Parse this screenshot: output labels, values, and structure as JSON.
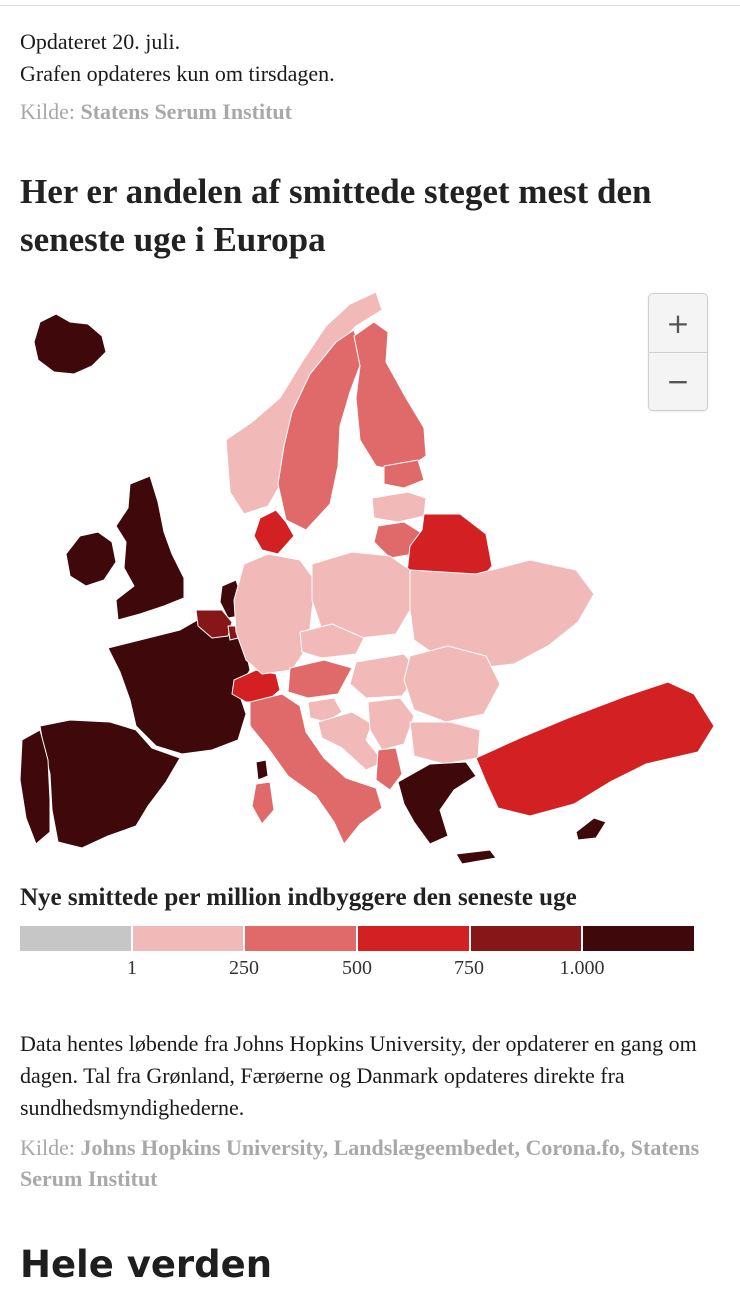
{
  "update_line": "Opdateret 20. juli.",
  "schedule_line": "Grafen opdateres kun om tirsdagen.",
  "source1": {
    "label": "Kilde:",
    "value": "Statens Serum Institut"
  },
  "map_title": "Her er andelen af smittede steget mest den seneste uge i Europa",
  "zoom": {
    "in": "+",
    "out": "−"
  },
  "legend": {
    "title": "Nye smittede per million indbyggere den seneste uge",
    "colors": [
      "#c6c6c6",
      "#f2b9b9",
      "#e06a6a",
      "#d32023",
      "#861618",
      "#3f080a"
    ],
    "ticks": [
      "1",
      "250",
      "500",
      "750",
      "1.000"
    ]
  },
  "regions": [
    {
      "name": "Iceland",
      "class": 5
    },
    {
      "name": "Ireland",
      "class": 5
    },
    {
      "name": "United Kingdom",
      "class": 5
    },
    {
      "name": "France",
      "class": 5
    },
    {
      "name": "Spain",
      "class": 5
    },
    {
      "name": "Portugal",
      "class": 5
    },
    {
      "name": "Netherlands",
      "class": 5
    },
    {
      "name": "Belgium",
      "class": 4
    },
    {
      "name": "Luxembourg",
      "class": 4
    },
    {
      "name": "Switzerland",
      "class": 3
    },
    {
      "name": "Norway",
      "class": 1
    },
    {
      "name": "Sweden",
      "class": 2
    },
    {
      "name": "Finland",
      "class": 2
    },
    {
      "name": "Denmark",
      "class": 3
    },
    {
      "name": "Estonia",
      "class": 2
    },
    {
      "name": "Latvia",
      "class": 1
    },
    {
      "name": "Lithuania",
      "class": 2
    },
    {
      "name": "Belarus",
      "class": 3
    },
    {
      "name": "Germany",
      "class": 1
    },
    {
      "name": "Poland",
      "class": 1
    },
    {
      "name": "Ukraine",
      "class": 1
    },
    {
      "name": "Czechia",
      "class": 1
    },
    {
      "name": "Austria",
      "class": 2
    },
    {
      "name": "Italy",
      "class": 2
    },
    {
      "name": "Sardinia",
      "class": 2
    },
    {
      "name": "Corsica",
      "class": 5
    },
    {
      "name": "Slovenia",
      "class": 1
    },
    {
      "name": "Croatia",
      "class": 1
    },
    {
      "name": "Hungary",
      "class": 1
    },
    {
      "name": "Romania",
      "class": 1
    },
    {
      "name": "Serbia",
      "class": 1
    },
    {
      "name": "Bulgaria",
      "class": 1
    },
    {
      "name": "Albania",
      "class": 2
    },
    {
      "name": "Greece",
      "class": 5
    },
    {
      "name": "Crete",
      "class": 5
    },
    {
      "name": "Turkey",
      "class": 3
    },
    {
      "name": "Cyprus",
      "class": 5
    }
  ],
  "notes": "Data hentes løbende fra Johns Hopkins University, der opdaterer en gang om dagen. Tal fra Grønland, Færøerne og Danmark opdateres direkte fra sundhedsmyndighederne.",
  "source2": {
    "label": "Kilde:",
    "value": "Johns Hopkins University, Landslægeembedet, Corona.fo, Statens Serum Institut"
  },
  "section_title": "Hele verden"
}
